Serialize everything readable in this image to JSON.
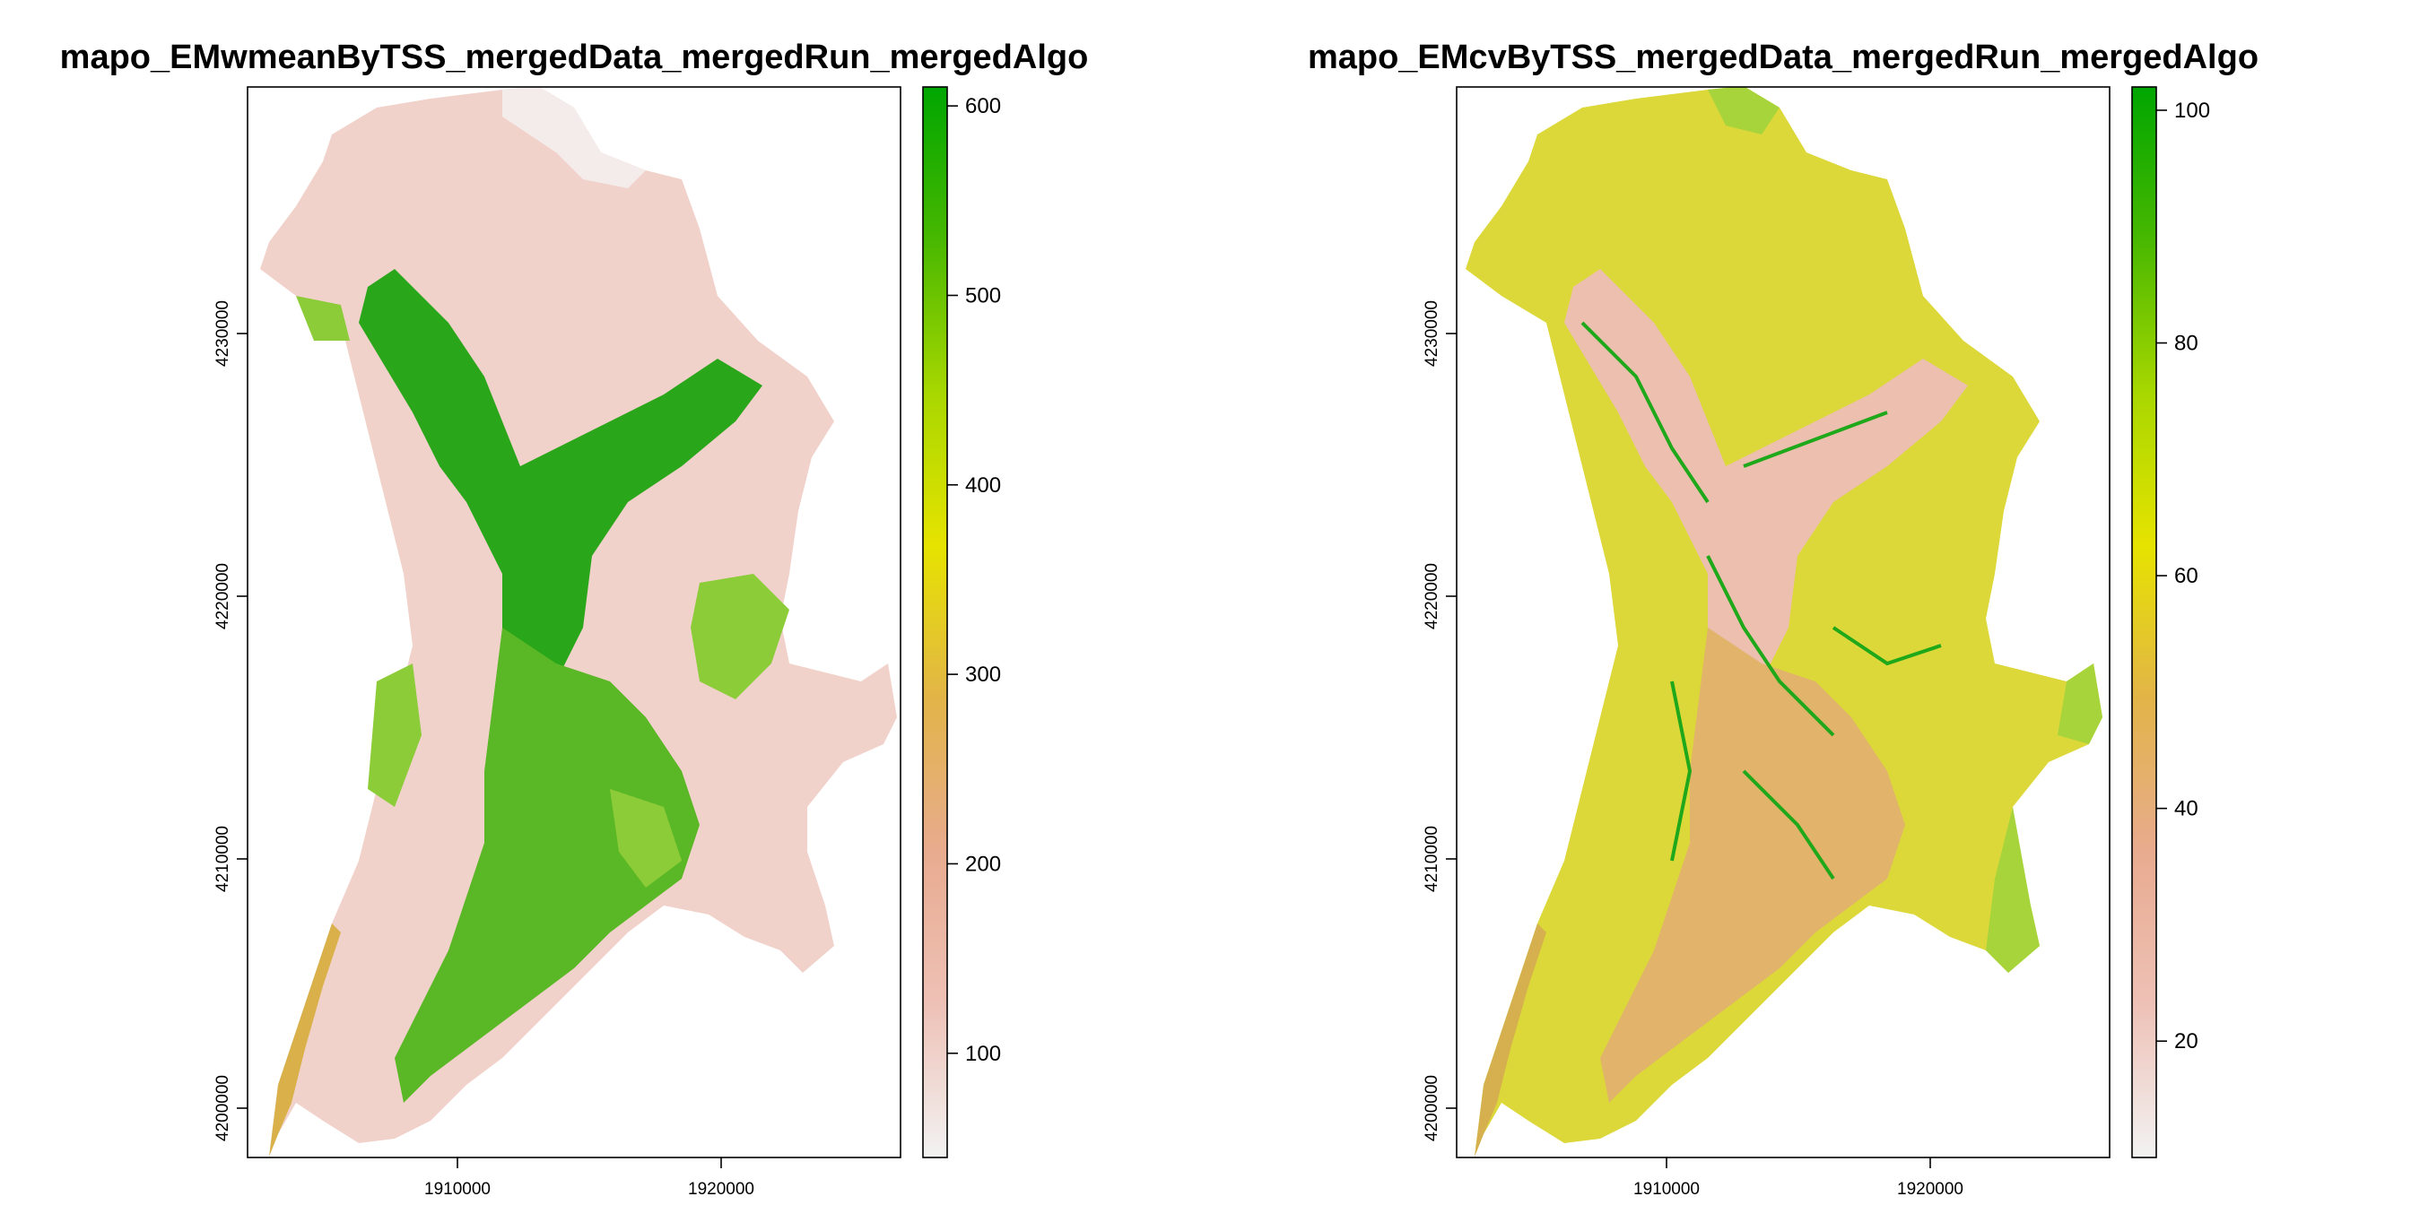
{
  "maps": [
    {
      "title": "mapo_EMwmeanByTSS_mergedData_mergedRun_mergedAlgo",
      "x_ticks": [
        "1910000",
        "1920000"
      ],
      "y_ticks": [
        "4200000",
        "4210000",
        "4220000",
        "4230000"
      ],
      "legend": {
        "ticks": [
          "100",
          "200",
          "300",
          "400",
          "500",
          "600"
        ],
        "range": [
          45,
          610
        ],
        "tick_values": [
          100,
          200,
          300,
          400,
          500,
          600
        ],
        "colors": [
          "#f2f2f2",
          "#eec1b6",
          "#e8ab8f",
          "#e2b448",
          "#e6e300",
          "#a8d700",
          "#48b800",
          "#00a600"
        ]
      },
      "surface_colors": {
        "base": "#f1d2cb",
        "dense": "#2aa61a",
        "mid": "#5ab826",
        "sparse": "#8ccc38",
        "edge": "#d9b04a",
        "pale": "#f3ecea"
      }
    },
    {
      "title": "mapo_EMcvByTSS_mergedData_mergedRun_mergedAlgo",
      "x_ticks": [
        "1910000",
        "1920000"
      ],
      "y_ticks": [
        "4200000",
        "4210000",
        "4220000",
        "4230000"
      ],
      "legend": {
        "ticks": [
          "20",
          "40",
          "60",
          "80",
          "100"
        ],
        "range": [
          10,
          102
        ],
        "tick_values": [
          20,
          40,
          60,
          80,
          100
        ],
        "colors": [
          "#f2f2f2",
          "#eec1b6",
          "#e8ab8f",
          "#e2b448",
          "#e6e300",
          "#a8d700",
          "#48b800",
          "#00a600"
        ]
      },
      "surface_colors": {
        "base": "#dcd83a",
        "dense": "#ecbfae",
        "mid": "#e2b36a",
        "sparse": "#1fa81a",
        "edge": "#d6b04e",
        "pale": "#a7d43a"
      }
    }
  ]
}
